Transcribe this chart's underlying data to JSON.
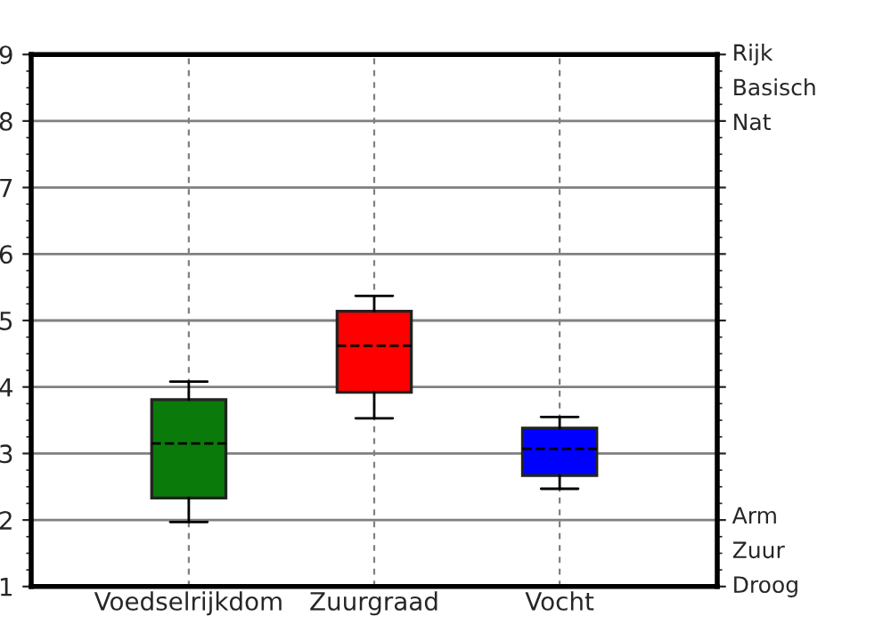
{
  "chart_data": {
    "type": "box",
    "categories": [
      "Voedselrijkdom",
      "Zuurgraad",
      "Vocht"
    ],
    "boxes": [
      {
        "low": 1.97,
        "q1": 2.33,
        "median": 3.15,
        "q3": 3.81,
        "high": 4.08
      },
      {
        "low": 3.53,
        "q1": 3.92,
        "median": 4.62,
        "q3": 5.14,
        "high": 5.37
      },
      {
        "low": 2.47,
        "q1": 2.67,
        "median": 3.07,
        "q3": 3.38,
        "high": 3.55
      }
    ],
    "colors": [
      "#0a7a0a",
      "#ff0000",
      "#0000ff"
    ],
    "ylim": [
      1,
      9
    ],
    "yticks": [
      1,
      2,
      3,
      4,
      5,
      6,
      7,
      8,
      9
    ],
    "grid": true,
    "annotations": [
      "Rijk",
      "Basisch",
      "Nat",
      "Arm",
      "Zuur",
      "Droog"
    ]
  }
}
